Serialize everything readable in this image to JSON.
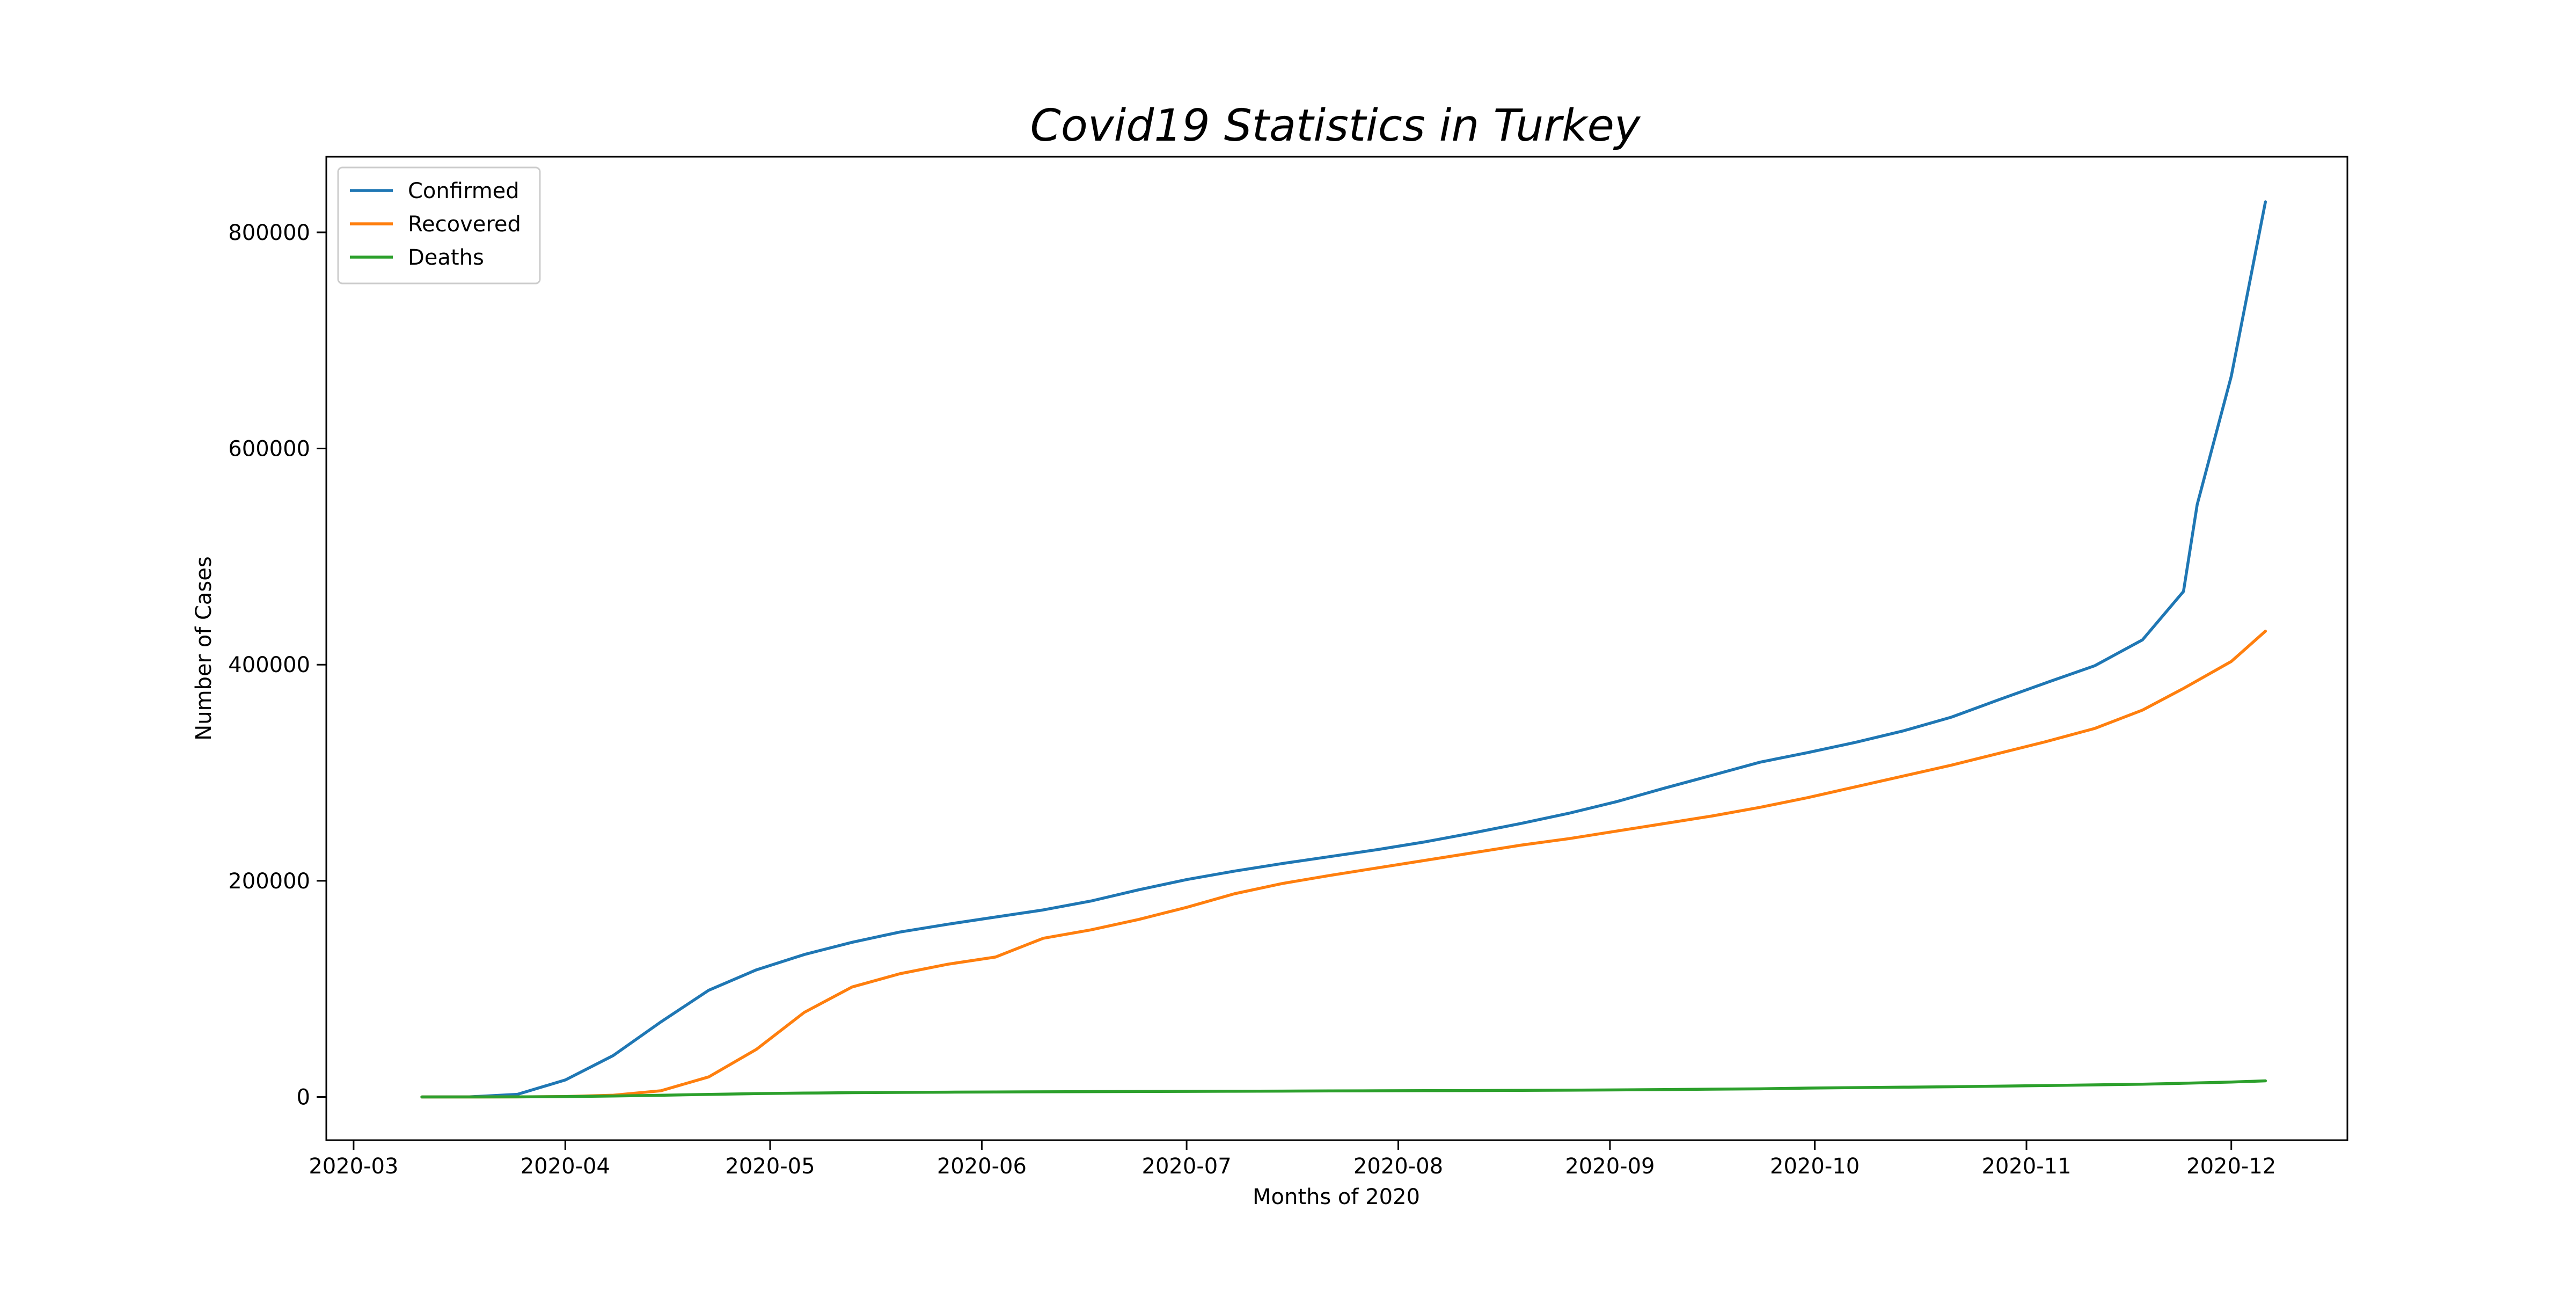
{
  "chart_data": {
    "type": "line",
    "title": "Covid19 Statistics in Turkey",
    "xlabel": "Months of 2020",
    "ylabel": "Number of Cases",
    "xlim": [
      "2020-02-26",
      "2020-12-18"
    ],
    "ylim": [
      -40000,
      870000
    ],
    "x_ticks": [
      "2020-03",
      "2020-04",
      "2020-05",
      "2020-06",
      "2020-07",
      "2020-08",
      "2020-09",
      "2020-10",
      "2020-11",
      "2020-12"
    ],
    "y_ticks": [
      0,
      200000,
      400000,
      600000,
      800000
    ],
    "grid": false,
    "legend_position": "top-left",
    "series": [
      {
        "name": "Confirmed",
        "color": "#1f77b4",
        "points": [
          [
            "2020-03-11",
            1
          ],
          [
            "2020-03-18",
            98
          ],
          [
            "2020-03-25",
            2433
          ],
          [
            "2020-04-01",
            15679
          ],
          [
            "2020-04-08",
            38226
          ],
          [
            "2020-04-15",
            69392
          ],
          [
            "2020-04-22",
            98674
          ],
          [
            "2020-04-29",
            117589
          ],
          [
            "2020-05-06",
            131744
          ],
          [
            "2020-05-13",
            143114
          ],
          [
            "2020-05-20",
            152587
          ],
          [
            "2020-05-27",
            159797
          ],
          [
            "2020-06-03",
            166422
          ],
          [
            "2020-06-10",
            173036
          ],
          [
            "2020-06-17",
            181298
          ],
          [
            "2020-06-24",
            191657
          ],
          [
            "2020-07-01",
            201098
          ],
          [
            "2020-07-08",
            208938
          ],
          [
            "2020-07-15",
            215940
          ],
          [
            "2020-07-22",
            222402
          ],
          [
            "2020-07-29",
            228924
          ],
          [
            "2020-08-05",
            236112
          ],
          [
            "2020-08-12",
            244392
          ],
          [
            "2020-08-19",
            253108
          ],
          [
            "2020-08-26",
            262507
          ],
          [
            "2020-09-02",
            273301
          ],
          [
            "2020-09-09",
            285773
          ],
          [
            "2020-09-16",
            297717
          ],
          [
            "2020-09-23",
            309790
          ],
          [
            "2020-09-30",
            318663
          ],
          [
            "2020-10-07",
            328165
          ],
          [
            "2020-10-14",
            338779
          ],
          [
            "2020-10-21",
            351413
          ],
          [
            "2020-10-28",
            367659
          ],
          [
            "2020-11-04",
            383500
          ],
          [
            "2020-11-11",
            399000
          ],
          [
            "2020-11-18",
            423000
          ],
          [
            "2020-11-24",
            467730
          ],
          [
            "2020-11-26",
            548000
          ],
          [
            "2020-12-01",
            667000
          ],
          [
            "2020-12-06",
            828295
          ]
        ]
      },
      {
        "name": "Recovered",
        "color": "#ff7f0e",
        "points": [
          [
            "2020-03-11",
            0
          ],
          [
            "2020-03-18",
            0
          ],
          [
            "2020-03-25",
            26
          ],
          [
            "2020-04-01",
            333
          ],
          [
            "2020-04-08",
            1582
          ],
          [
            "2020-04-15",
            5674
          ],
          [
            "2020-04-22",
            18491
          ],
          [
            "2020-04-29",
            44040
          ],
          [
            "2020-05-06",
            78202
          ],
          [
            "2020-05-13",
            101715
          ],
          [
            "2020-05-20",
            113987
          ],
          [
            "2020-05-27",
            122793
          ],
          [
            "2020-06-03",
            129417
          ],
          [
            "2020-06-10",
            146839
          ],
          [
            "2020-06-17",
            154640
          ],
          [
            "2020-06-24",
            164234
          ],
          [
            "2020-07-01",
            175422
          ],
          [
            "2020-07-08",
            188000
          ],
          [
            "2020-07-15",
            197500
          ],
          [
            "2020-07-22",
            205000
          ],
          [
            "2020-07-29",
            212000
          ],
          [
            "2020-08-05",
            219000
          ],
          [
            "2020-08-12",
            226000
          ],
          [
            "2020-08-19",
            233000
          ],
          [
            "2020-08-26",
            239000
          ],
          [
            "2020-09-02",
            246000
          ],
          [
            "2020-09-09",
            253000
          ],
          [
            "2020-09-16",
            260000
          ],
          [
            "2020-09-23",
            268000
          ],
          [
            "2020-09-30",
            277000
          ],
          [
            "2020-10-07",
            287000
          ],
          [
            "2020-10-14",
            297000
          ],
          [
            "2020-10-21",
            307000
          ],
          [
            "2020-10-28",
            318000
          ],
          [
            "2020-11-04",
            329000
          ],
          [
            "2020-11-11",
            341000
          ],
          [
            "2020-11-18",
            358000
          ],
          [
            "2020-11-24",
            378000
          ],
          [
            "2020-12-01",
            403000
          ],
          [
            "2020-12-06",
            431000
          ]
        ]
      },
      {
        "name": "Deaths",
        "color": "#2ca02c",
        "points": [
          [
            "2020-03-11",
            0
          ],
          [
            "2020-03-18",
            1
          ],
          [
            "2020-03-25",
            59
          ],
          [
            "2020-04-01",
            277
          ],
          [
            "2020-04-08",
            812
          ],
          [
            "2020-04-15",
            1518
          ],
          [
            "2020-04-22",
            2376
          ],
          [
            "2020-04-29",
            3081
          ],
          [
            "2020-05-06",
            3584
          ],
          [
            "2020-05-13",
            3952
          ],
          [
            "2020-05-20",
            4222
          ],
          [
            "2020-05-27",
            4431
          ],
          [
            "2020-06-03",
            4609
          ],
          [
            "2020-06-10",
            4746
          ],
          [
            "2020-06-17",
            4882
          ],
          [
            "2020-06-24",
            5025
          ],
          [
            "2020-07-01",
            5150
          ],
          [
            "2020-07-08",
            5260
          ],
          [
            "2020-07-15",
            5400
          ],
          [
            "2020-07-22",
            5526
          ],
          [
            "2020-07-29",
            5674
          ],
          [
            "2020-08-05",
            5784
          ],
          [
            "2020-08-12",
            5912
          ],
          [
            "2020-08-19",
            6058
          ],
          [
            "2020-08-26",
            6245
          ],
          [
            "2020-09-02",
            6511
          ],
          [
            "2020-09-09",
            6837
          ],
          [
            "2020-09-16",
            7186
          ],
          [
            "2020-09-23",
            7506
          ],
          [
            "2020-09-30",
            8195
          ],
          [
            "2020-10-07",
            8609
          ],
          [
            "2020-10-14",
            9013
          ],
          [
            "2020-10-21",
            9445
          ],
          [
            "2020-10-28",
            9950
          ],
          [
            "2020-11-04",
            10558
          ],
          [
            "2020-11-11",
            11145
          ],
          [
            "2020-11-18",
            11820
          ],
          [
            "2020-11-24",
            12672
          ],
          [
            "2020-12-01",
            13746
          ],
          [
            "2020-12-06",
            14900
          ]
        ]
      }
    ]
  }
}
